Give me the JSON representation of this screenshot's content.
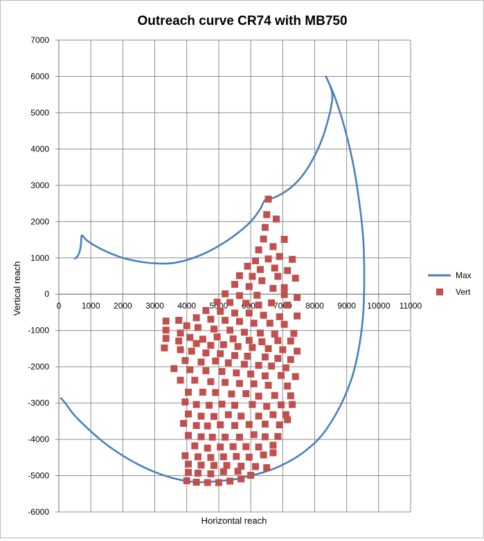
{
  "chart_data": {
    "type": "scatter",
    "title": "Outreach curve CR74 with MB750",
    "xlabel": "Horizontal reach",
    "ylabel": "Vertical reach",
    "xlim": [
      0,
      11000
    ],
    "ylim": [
      -6000,
      7000
    ],
    "x_ticks": [
      "0",
      "1000",
      "2000",
      "3000",
      "4000",
      "5000",
      "6000",
      "7000",
      "8000",
      "9000",
      "10000",
      "11000"
    ],
    "y_ticks": [
      "-6000",
      "-5000",
      "-4000",
      "-3000",
      "-2000",
      "-1000",
      "0",
      "1000",
      "2000",
      "3000",
      "4000",
      "5000",
      "6000",
      "7000"
    ],
    "grid": true,
    "legend_position": "right",
    "series": [
      {
        "name": "Max",
        "kind": "line",
        "color": "#4a7ebb",
        "points": [
          [
            480,
            970
          ],
          [
            570,
            1030
          ],
          [
            640,
            1150
          ],
          [
            680,
            1300
          ],
          [
            700,
            1450
          ],
          [
            720,
            1620
          ],
          [
            850,
            1500
          ],
          [
            1100,
            1350
          ],
          [
            1500,
            1170
          ],
          [
            2000,
            1000
          ],
          [
            2500,
            900
          ],
          [
            3000,
            850
          ],
          [
            3500,
            850
          ],
          [
            4000,
            940
          ],
          [
            4500,
            1100
          ],
          [
            5000,
            1330
          ],
          [
            5500,
            1620
          ],
          [
            6000,
            2000
          ],
          [
            6300,
            2350
          ],
          [
            6450,
            2600
          ],
          [
            6700,
            2650
          ],
          [
            7000,
            2780
          ],
          [
            7300,
            2970
          ],
          [
            7600,
            3250
          ],
          [
            7900,
            3650
          ],
          [
            8200,
            4200
          ],
          [
            8450,
            4900
          ],
          [
            8550,
            5400
          ],
          [
            8500,
            5700
          ],
          [
            8350,
            6000
          ],
          [
            8600,
            5500
          ],
          [
            8900,
            4700
          ],
          [
            9200,
            3600
          ],
          [
            9400,
            2500
          ],
          [
            9520,
            1500
          ],
          [
            9550,
            500
          ],
          [
            9520,
            -500
          ],
          [
            9400,
            -1400
          ],
          [
            9200,
            -2200
          ],
          [
            8900,
            -2900
          ],
          [
            8600,
            -3400
          ],
          [
            8300,
            -3800
          ],
          [
            8000,
            -4100
          ],
          [
            7500,
            -4450
          ],
          [
            7000,
            -4700
          ],
          [
            6500,
            -4880
          ],
          [
            6000,
            -5000
          ],
          [
            5500,
            -5100
          ],
          [
            5000,
            -5150
          ],
          [
            4500,
            -5180
          ],
          [
            4000,
            -5150
          ],
          [
            3500,
            -5050
          ],
          [
            3000,
            -4900
          ],
          [
            2500,
            -4700
          ],
          [
            2000,
            -4450
          ],
          [
            1500,
            -4150
          ],
          [
            1000,
            -3780
          ],
          [
            500,
            -3350
          ],
          [
            200,
            -3000
          ],
          [
            50,
            -2850
          ]
        ]
      },
      {
        "name": "Vert",
        "kind": "scatter",
        "color": "#c0504d",
        "points": [
          [
            6550,
            2620
          ],
          [
            6500,
            2190
          ],
          [
            6800,
            2070
          ],
          [
            6450,
            1840
          ],
          [
            6400,
            1520
          ],
          [
            6700,
            1310
          ],
          [
            7050,
            1510
          ],
          [
            6250,
            1220
          ],
          [
            6150,
            920
          ],
          [
            6550,
            970
          ],
          [
            6900,
            1040
          ],
          [
            7300,
            960
          ],
          [
            5900,
            770
          ],
          [
            6300,
            680
          ],
          [
            6750,
            720
          ],
          [
            7150,
            650
          ],
          [
            5650,
            510
          ],
          [
            6050,
            490
          ],
          [
            6850,
            490
          ],
          [
            7400,
            440
          ],
          [
            5500,
            270
          ],
          [
            5950,
            210
          ],
          [
            6350,
            370
          ],
          [
            6700,
            160
          ],
          [
            7050,
            180
          ],
          [
            5200,
            10
          ],
          [
            5650,
            -40
          ],
          [
            6200,
            -30
          ],
          [
            7050,
            -10
          ],
          [
            7450,
            -90
          ],
          [
            4950,
            -220
          ],
          [
            5350,
            -230
          ],
          [
            5850,
            -250
          ],
          [
            6250,
            -300
          ],
          [
            6650,
            -240
          ],
          [
            7150,
            -300
          ],
          [
            4600,
            -450
          ],
          [
            5050,
            -470
          ],
          [
            5500,
            -520
          ],
          [
            5950,
            -520
          ],
          [
            6400,
            -580
          ],
          [
            6900,
            -620
          ],
          [
            7450,
            -600
          ],
          [
            4300,
            -650
          ],
          [
            4750,
            -690
          ],
          [
            5200,
            -720
          ],
          [
            5650,
            -750
          ],
          [
            6100,
            -800
          ],
          [
            6600,
            -800
          ],
          [
            7050,
            -830
          ],
          [
            3350,
            -740
          ],
          [
            3350,
            -990
          ],
          [
            3750,
            -720
          ],
          [
            4000,
            -870
          ],
          [
            4350,
            -920
          ],
          [
            4850,
            -960
          ],
          [
            5350,
            -990
          ],
          [
            5800,
            -1050
          ],
          [
            6300,
            -1070
          ],
          [
            6750,
            -1100
          ],
          [
            7350,
            -1080
          ],
          [
            3800,
            -1070
          ],
          [
            3350,
            -1220
          ],
          [
            4100,
            -1190
          ],
          [
            4500,
            -1240
          ],
          [
            4950,
            -1180
          ],
          [
            5450,
            -1230
          ],
          [
            5950,
            -1270
          ],
          [
            6350,
            -1310
          ],
          [
            6850,
            -1280
          ],
          [
            7250,
            -1290
          ],
          [
            3750,
            -1290
          ],
          [
            4300,
            -1360
          ],
          [
            4750,
            -1410
          ],
          [
            5150,
            -1390
          ],
          [
            5600,
            -1440
          ],
          [
            6050,
            -1470
          ],
          [
            6550,
            -1500
          ],
          [
            7000,
            -1530
          ],
          [
            7450,
            -1570
          ],
          [
            3300,
            -1480
          ],
          [
            3800,
            -1530
          ],
          [
            4150,
            -1570
          ],
          [
            4600,
            -1620
          ],
          [
            5050,
            -1640
          ],
          [
            5500,
            -1690
          ],
          [
            5900,
            -1710
          ],
          [
            6450,
            -1730
          ],
          [
            6850,
            -1770
          ],
          [
            7250,
            -1800
          ],
          [
            3950,
            -1830
          ],
          [
            4450,
            -1870
          ],
          [
            4900,
            -1840
          ],
          [
            5300,
            -1890
          ],
          [
            5800,
            -1930
          ],
          [
            6250,
            -1960
          ],
          [
            6650,
            -1980
          ],
          [
            7100,
            -2030
          ],
          [
            3600,
            -2050
          ],
          [
            4100,
            -2080
          ],
          [
            4600,
            -2110
          ],
          [
            5100,
            -2130
          ],
          [
            5550,
            -2170
          ],
          [
            6000,
            -2200
          ],
          [
            6450,
            -2250
          ],
          [
            6950,
            -2240
          ],
          [
            7400,
            -2270
          ],
          [
            3800,
            -2370
          ],
          [
            4250,
            -2370
          ],
          [
            4750,
            -2410
          ],
          [
            5200,
            -2430
          ],
          [
            5650,
            -2460
          ],
          [
            6100,
            -2470
          ],
          [
            6550,
            -2510
          ],
          [
            7150,
            -2530
          ],
          [
            4050,
            -2700
          ],
          [
            4500,
            -2700
          ],
          [
            4900,
            -2710
          ],
          [
            5400,
            -2750
          ],
          [
            5850,
            -2740
          ],
          [
            6250,
            -2810
          ],
          [
            6750,
            -2790
          ],
          [
            7250,
            -2800
          ],
          [
            3950,
            -2970
          ],
          [
            4300,
            -3040
          ],
          [
            4700,
            -3060
          ],
          [
            5100,
            -3030
          ],
          [
            5500,
            -3060
          ],
          [
            6050,
            -3040
          ],
          [
            6500,
            -3090
          ],
          [
            6950,
            -3050
          ],
          [
            7300,
            -3040
          ],
          [
            4050,
            -3300
          ],
          [
            4450,
            -3360
          ],
          [
            4850,
            -3370
          ],
          [
            5300,
            -3320
          ],
          [
            5700,
            -3360
          ],
          [
            6250,
            -3360
          ],
          [
            6700,
            -3320
          ],
          [
            7100,
            -3320
          ],
          [
            3900,
            -3560
          ],
          [
            4300,
            -3620
          ],
          [
            4650,
            -3630
          ],
          [
            5050,
            -3600
          ],
          [
            5500,
            -3620
          ],
          [
            5950,
            -3590
          ],
          [
            6450,
            -3580
          ],
          [
            6900,
            -3600
          ],
          [
            7150,
            -3460
          ],
          [
            4050,
            -3890
          ],
          [
            4450,
            -3930
          ],
          [
            4800,
            -3940
          ],
          [
            5200,
            -3940
          ],
          [
            5650,
            -3940
          ],
          [
            6100,
            -3870
          ],
          [
            6450,
            -3930
          ],
          [
            6850,
            -3920
          ],
          [
            4250,
            -4180
          ],
          [
            4650,
            -4240
          ],
          [
            5050,
            -4210
          ],
          [
            5450,
            -4200
          ],
          [
            5850,
            -4200
          ],
          [
            6250,
            -4210
          ],
          [
            6700,
            -4160
          ],
          [
            3950,
            -4450
          ],
          [
            4350,
            -4480
          ],
          [
            4750,
            -4500
          ],
          [
            5150,
            -4480
          ],
          [
            5550,
            -4470
          ],
          [
            5950,
            -4490
          ],
          [
            6400,
            -4430
          ],
          [
            6700,
            -4370
          ],
          [
            4050,
            -4680
          ],
          [
            4450,
            -4710
          ],
          [
            4850,
            -4720
          ],
          [
            5250,
            -4720
          ],
          [
            5700,
            -4740
          ],
          [
            6150,
            -4750
          ],
          [
            6500,
            -4780
          ],
          [
            4050,
            -4910
          ],
          [
            4350,
            -4930
          ],
          [
            4750,
            -4950
          ],
          [
            5150,
            -4890
          ],
          [
            5600,
            -4880
          ],
          [
            6000,
            -4990
          ],
          [
            4000,
            -5140
          ],
          [
            4300,
            -5180
          ],
          [
            4650,
            -5190
          ],
          [
            5000,
            -5190
          ],
          [
            5350,
            -5150
          ],
          [
            5700,
            -5090
          ]
        ]
      }
    ]
  }
}
